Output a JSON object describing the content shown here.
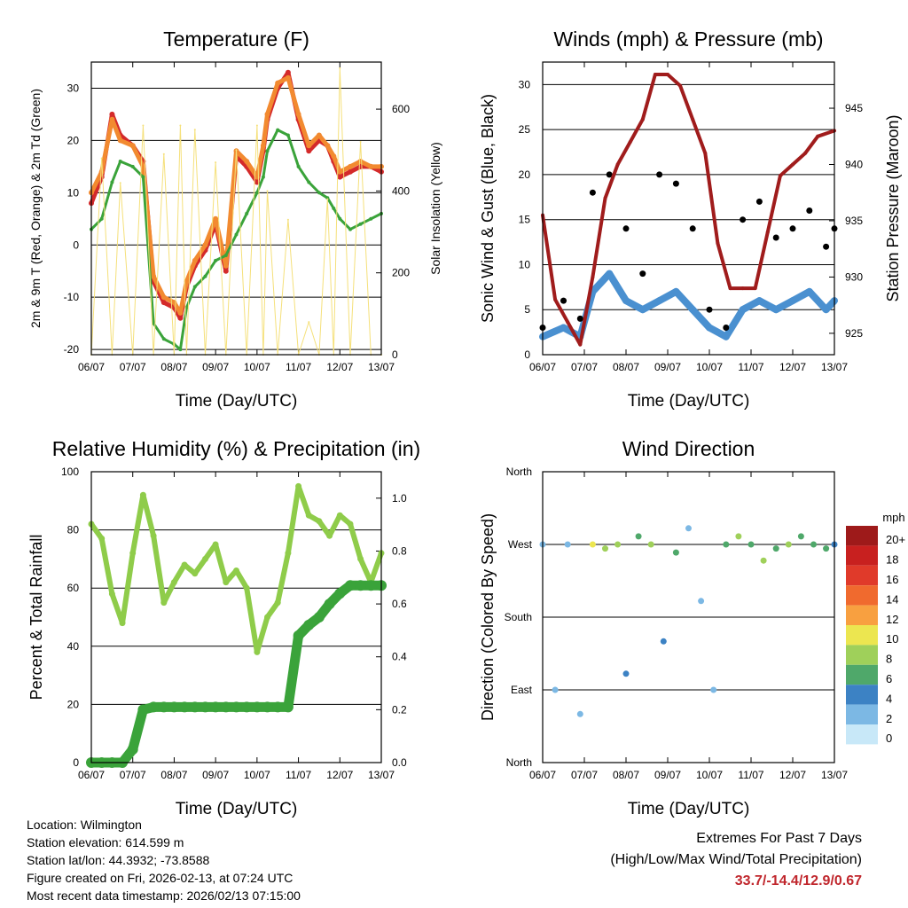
{
  "chart_data": [
    {
      "type": "line",
      "title": "Temperature (F)",
      "xlabel": "Time (Day/UTC)",
      "ylabel": "2m & 9m T (Red, Orange) & 2m Td (Green)",
      "y2label": "Solar Insolation (Yellow)",
      "x_ticks": [
        "06/07",
        "07/07",
        "08/07",
        "09/07",
        "10/07",
        "11/07",
        "12/07",
        "13/07"
      ],
      "ylim": [
        -21,
        35
      ],
      "y_ticks": [
        -20,
        -10,
        0,
        10,
        20,
        30
      ],
      "y2lim": [
        0,
        715
      ],
      "y2_ticks": [
        0,
        200,
        400,
        600
      ],
      "x": [
        0,
        0.25,
        0.5,
        0.7,
        1,
        1.25,
        1.5,
        1.75,
        2,
        2.15,
        2.3,
        2.5,
        2.75,
        3,
        3.25,
        3.5,
        3.75,
        4,
        4.15,
        4.25,
        4.5,
        4.75,
        5,
        5.25,
        5.5,
        5.7,
        5.85,
        6,
        6.25,
        6.5,
        6.75,
        7
      ],
      "series": [
        {
          "name": "2m T",
          "color": "#d42a2a",
          "values": [
            8,
            13,
            25,
            21,
            19,
            16,
            -7,
            -11,
            -12,
            -14,
            -8,
            -4,
            -1,
            4,
            -5,
            17,
            15,
            12,
            18,
            24,
            30,
            33,
            24,
            18,
            20,
            19,
            16,
            13,
            14,
            15,
            15,
            14
          ]
        },
        {
          "name": "9m T",
          "color": "#f28a30",
          "values": [
            10,
            14,
            24,
            20,
            19,
            15,
            -6,
            -10,
            -11,
            -13,
            -7,
            -3,
            0,
            5,
            -4,
            18,
            16,
            13,
            19,
            25,
            31,
            32,
            25,
            19,
            21,
            19,
            17,
            14,
            15,
            16,
            15,
            15
          ]
        },
        {
          "name": "2m Td",
          "color": "#3aa33a",
          "values": [
            3,
            5,
            12,
            16,
            15,
            13,
            -15,
            -18,
            -19,
            -20,
            -12,
            -8,
            -6,
            -3,
            -2,
            2,
            6,
            10,
            13,
            18,
            22,
            21,
            15,
            12,
            10,
            9,
            7,
            5,
            3,
            4,
            5,
            6
          ]
        },
        {
          "name": "Solar Insolation",
          "color": "#f5e07a",
          "axis": "y2",
          "values": [
            0,
            480,
            0,
            420,
            0,
            560,
            0,
            490,
            0,
            560,
            0,
            550,
            0,
            470,
            0,
            500,
            0,
            560,
            0,
            400,
            0,
            330,
            0,
            80,
            0,
            380,
            0,
            700,
            0,
            520,
            0,
            0
          ]
        }
      ]
    },
    {
      "type": "scatter",
      "title": "Winds (mph) & Pressure (mb)",
      "xlabel": "Time (Day/UTC)",
      "ylabel": "Sonic Wind & Gust (Blue, Black)",
      "y2label": "Station Pressure (Maroon)",
      "x_ticks": [
        "06/07",
        "07/07",
        "08/07",
        "09/07",
        "10/07",
        "11/07",
        "12/07",
        "13/07"
      ],
      "ylim": [
        0,
        32.5
      ],
      "y_ticks": [
        0,
        5,
        10,
        15,
        20,
        25,
        30
      ],
      "y2lim": [
        923.1,
        949.1
      ],
      "y2_ticks": [
        925,
        930,
        935,
        940,
        945
      ],
      "series": [
        {
          "name": "Sonic Wind",
          "color": "#4a90d0",
          "x": [
            0,
            0.5,
            0.9,
            1.2,
            1.6,
            2.0,
            2.4,
            2.8,
            3.2,
            3.6,
            4.0,
            4.4,
            4.8,
            5.2,
            5.6,
            6.0,
            6.4,
            6.8,
            7.0
          ],
          "values": [
            2,
            3,
            2,
            7,
            9,
            6,
            5,
            6,
            7,
            5,
            3,
            2,
            5,
            6,
            5,
            6,
            7,
            5,
            6
          ]
        },
        {
          "name": "Gust",
          "color": "#000000",
          "x": [
            0,
            0.5,
            0.9,
            1.2,
            1.6,
            2.0,
            2.4,
            2.8,
            3.2,
            3.6,
            4.0,
            4.4,
            4.8,
            5.2,
            5.6,
            6.0,
            6.4,
            6.8,
            7.0
          ],
          "values": [
            3,
            6,
            4,
            18,
            20,
            14,
            9,
            20,
            19,
            14,
            5,
            3,
            15,
            17,
            13,
            14,
            16,
            12,
            14
          ]
        },
        {
          "name": "Station Pressure",
          "color": "#a01c1c",
          "axis": "y2",
          "x": [
            0,
            0.3,
            0.6,
            0.9,
            1.2,
            1.5,
            1.8,
            2.1,
            2.4,
            2.7,
            3.0,
            3.3,
            3.6,
            3.9,
            4.2,
            4.5,
            4.8,
            5.1,
            5.4,
            5.7,
            6.0,
            6.3,
            6.6,
            7.0
          ],
          "values": [
            935.5,
            928,
            926,
            924,
            930,
            937,
            940,
            942,
            944,
            948,
            948,
            947,
            944,
            941,
            933,
            929,
            929,
            929,
            934,
            939,
            940,
            941,
            942.5,
            943
          ]
        }
      ]
    },
    {
      "type": "line",
      "title": "Relative Humidity (%) & Precipitation (in)",
      "xlabel": "Time (Day/UTC)",
      "ylabel": "Percent & Total Rainfall",
      "x_ticks": [
        "06/07",
        "07/07",
        "08/07",
        "09/07",
        "10/07",
        "11/07",
        "12/07",
        "13/07"
      ],
      "ylim": [
        0,
        100
      ],
      "y_ticks": [
        0,
        20,
        40,
        60,
        80,
        100
      ],
      "y2lim": [
        0,
        1.1
      ],
      "y2_ticks": [
        "0.0",
        "0.2",
        "0.4",
        "0.6",
        "0.8",
        "1.0"
      ],
      "x": [
        0,
        0.25,
        0.5,
        0.75,
        1,
        1.25,
        1.5,
        1.75,
        2,
        2.25,
        2.5,
        2.75,
        3,
        3.25,
        3.5,
        3.75,
        4,
        4.25,
        4.5,
        4.75,
        5,
        5.25,
        5.5,
        5.75,
        6,
        6.25,
        6.5,
        6.75,
        7
      ],
      "series": [
        {
          "name": "Relative Humidity",
          "color": "#8fcc4a",
          "values": [
            82,
            77,
            58,
            48,
            72,
            92,
            78,
            55,
            62,
            68,
            65,
            70,
            75,
            62,
            66,
            60,
            38,
            50,
            55,
            72,
            95,
            85,
            83,
            78,
            85,
            82,
            70,
            62,
            72
          ]
        },
        {
          "name": "Total Precipitation",
          "color": "#3aa33a",
          "axis": "y2",
          "values": [
            0,
            0,
            0,
            0,
            0.05,
            0.2,
            0.21,
            0.21,
            0.21,
            0.21,
            0.21,
            0.21,
            0.21,
            0.21,
            0.21,
            0.21,
            0.21,
            0.21,
            0.21,
            0.21,
            0.48,
            0.52,
            0.55,
            0.6,
            0.64,
            0.67,
            0.67,
            0.67,
            0.67
          ]
        }
      ]
    },
    {
      "type": "scatter",
      "title": "Wind Direction",
      "xlabel": "Time (Day/UTC)",
      "ylabel": "Direction (Colored By Speed)",
      "x_ticks": [
        "06/07",
        "07/07",
        "08/07",
        "09/07",
        "10/07",
        "11/07",
        "12/07",
        "13/07"
      ],
      "y_ticks": [
        "North",
        "East",
        "South",
        "West",
        "North"
      ],
      "ylim": [
        0,
        360
      ],
      "colorbar": {
        "title": "mph",
        "labels": [
          "20+",
          "18",
          "16",
          "14",
          "12",
          "10",
          "8",
          "6",
          "4",
          "2",
          "0"
        ],
        "colors": [
          "#9e1a1a",
          "#c8201f",
          "#e03a2a",
          "#f06a2e",
          "#f8a040",
          "#ece650",
          "#9fd05a",
          "#4fa86a",
          "#3c82c4",
          "#7cb8e4",
          "#c8e8f8"
        ]
      },
      "series": [
        {
          "name": "Wind Direction",
          "x": [
            0,
            0.3,
            0.6,
            0.9,
            1.2,
            1.5,
            1.8,
            2.0,
            2.3,
            2.6,
            2.9,
            3.2,
            3.5,
            3.8,
            4.1,
            4.4,
            4.7,
            5.0,
            5.3,
            5.6,
            5.9,
            6.2,
            6.5,
            6.8,
            7.0
          ],
          "values": [
            270,
            90,
            270,
            60,
            270,
            265,
            270,
            110,
            280,
            270,
            150,
            260,
            290,
            200,
            90,
            270,
            280,
            270,
            250,
            265,
            270,
            280,
            270,
            265,
            270
          ],
          "speeds": [
            1,
            2,
            1,
            2,
            10,
            8,
            7,
            4,
            6,
            8,
            3,
            5,
            2,
            1,
            2,
            5,
            7,
            6,
            8,
            5,
            7,
            6,
            5,
            6,
            4
          ]
        }
      ]
    }
  ],
  "footer": {
    "location": "Location: Wilmington",
    "elevation": "Station elevation: 614.599 m",
    "latlon": "Station lat/lon: 44.3932; -73.8588",
    "created": "Figure created on Fri, 2026-02-13, at 07:24 UTC",
    "recent": "Most recent data timestamp: 2026/02/13 07:15:00"
  },
  "extremes": {
    "heading": "Extremes For Past 7 Days",
    "subheading": "(High/Low/Max Wind/Total Precipitation)",
    "values": "33.7/-14.4/12.9/0.67"
  }
}
